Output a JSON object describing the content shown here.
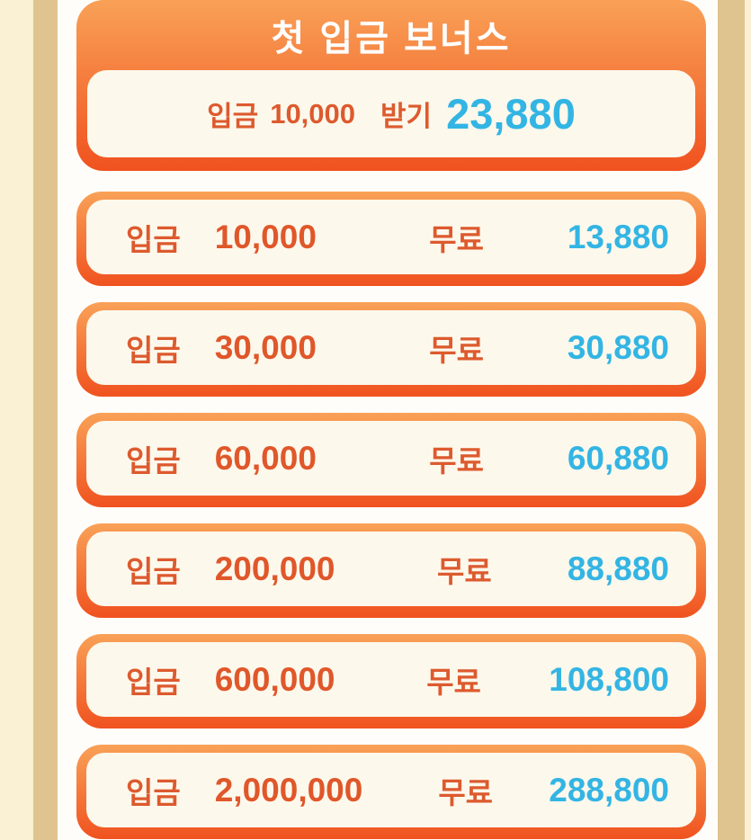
{
  "colors": {
    "outer_cream": "#faf0d3",
    "tan_stripe": "#e0c48f",
    "content_bg": "#fefdfa",
    "border_top": "#f9a157",
    "border_bottom": "#f0521f",
    "inner_cream": "#fdf8ec",
    "orange_text": "#dd5a2e",
    "orange_amount": "#e0572a",
    "cyan_text": "#33b5e4",
    "title_text": "#ffffff"
  },
  "header": {
    "title": "첫 입금 보너스"
  },
  "first_bonus": {
    "deposit_label": "입금",
    "deposit_amount": "10,000",
    "action_label": "받기",
    "bonus_amount": "23,880"
  },
  "bonus_rows": [
    {
      "deposit_label": "입금",
      "deposit_amount": "10,000",
      "free_label": "무료",
      "bonus_amount": "13,880"
    },
    {
      "deposit_label": "입금",
      "deposit_amount": "30,000",
      "free_label": "무료",
      "bonus_amount": "30,880"
    },
    {
      "deposit_label": "입금",
      "deposit_amount": "60,000",
      "free_label": "무료",
      "bonus_amount": "60,880"
    },
    {
      "deposit_label": "입금",
      "deposit_amount": "200,000",
      "free_label": "무료",
      "bonus_amount": "88,880"
    },
    {
      "deposit_label": "입금",
      "deposit_amount": "600,000",
      "free_label": "무료",
      "bonus_amount": "108,800"
    },
    {
      "deposit_label": "입금",
      "deposit_amount": "2,000,000",
      "free_label": "무료",
      "bonus_amount": "288,800"
    }
  ],
  "layout": {
    "rows_top_start": 213,
    "rows_step": 123
  }
}
